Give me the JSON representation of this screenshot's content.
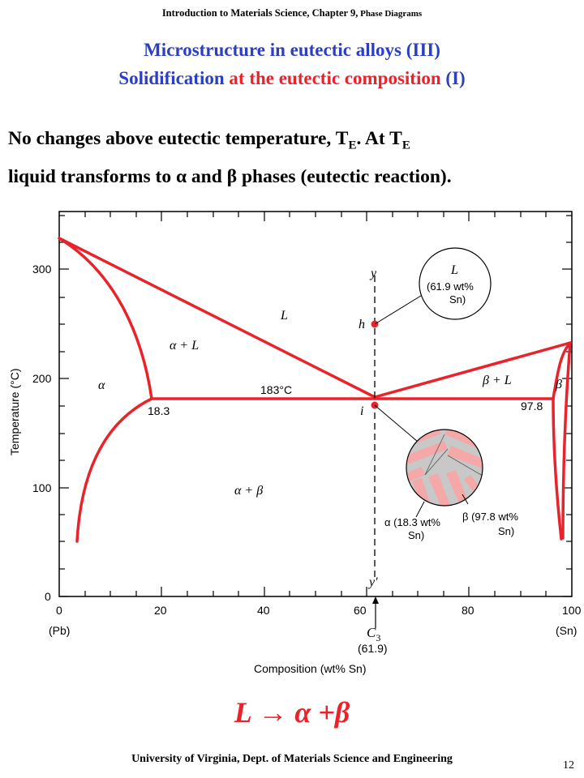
{
  "header": {
    "main": "Introduction to Materials Science, Chapter 9,",
    "small": " Phase Diagrams"
  },
  "title": {
    "line1": "Microstructure in eutectic alloys (III)",
    "line2_a": "Solidification",
    "line2_b": " at the eutectic composition",
    "line2_c": " (I)"
  },
  "body": {
    "l1_a": "No changes above eutectic temperature, T",
    "l1_sub1": "E",
    "l1_b": ".  At T",
    "l1_sub2": "E",
    "l2": "liquid transforms to α and β phases (eutectic reaction)."
  },
  "diagram": {
    "y_axis_label": "Temperature (°C)",
    "x_axis_label": "Composition (wt% Sn)",
    "y_ticks": [
      "0",
      "100",
      "200",
      "300"
    ],
    "x_ticks": [
      "0",
      "20",
      "40",
      "60",
      "80",
      "100"
    ],
    "x_end_left": "(Pb)",
    "x_end_right": "(Sn)",
    "region_L": "L",
    "region_alpha": "α",
    "region_alpha_L": "α + L",
    "region_beta_L": "β + L",
    "region_alpha_beta": "α + β",
    "region_beta": "β",
    "eutectic_temp_label": "183°C",
    "alpha_comp_label": "18.3",
    "beta_comp_label": "97.8",
    "line_top_label": "y",
    "line_bottom_label": "y′",
    "point_h": "h",
    "point_i": "i",
    "c3_label": "C",
    "c3_sub": "3",
    "c3_value": "(61.9)",
    "bubble_liquid_title": "L",
    "bubble_liquid_line1": "(61.9 wt%",
    "bubble_liquid_line2": "Sn)",
    "alpha_phase_line1": "α (18.3 wt%",
    "alpha_phase_line2": "Sn)",
    "beta_phase_line1": "β (97.8 wt%",
    "beta_phase_line2": "Sn)"
  },
  "equation": "L → α +β",
  "footer": "University of Virginia, Dept. of Materials Science and Engineering",
  "page_number": "12",
  "colors": {
    "title_blue": "#2c3fbf",
    "accent_red": "#e8232b",
    "lamella_pink": "#f4a8a8",
    "lamella_gray": "#c8c8c8"
  }
}
